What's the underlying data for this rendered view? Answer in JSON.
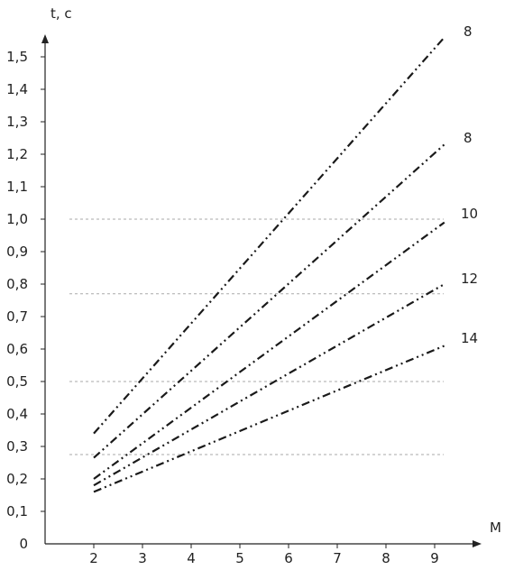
{
  "chart_data": {
    "type": "line",
    "xlabel": "M",
    "ylabel": "t, c",
    "xlim": [
      1,
      9.5
    ],
    "ylim": [
      0,
      1.6
    ],
    "x_ticks": [
      "2",
      "3",
      "4",
      "5",
      "6",
      "7",
      "8",
      "9"
    ],
    "y_ticks": [
      "0",
      "0,1",
      "0,2",
      "0,3",
      "0,4",
      "0,5",
      "0,6",
      "0,7",
      "0,8",
      "0,9",
      "1,0",
      "1,1",
      "1,2",
      "1,3",
      "1,4",
      "1,5"
    ],
    "reference_lines": [
      1.0,
      0.77,
      0.5,
      0.275
    ],
    "grid": false,
    "legend": "none",
    "line_color": "#1a1a1a",
    "reference_color": "#aaaaaa",
    "series": [
      {
        "label": "8",
        "points": [
          [
            2,
            0.34
          ],
          [
            9.2,
            1.56
          ]
        ]
      },
      {
        "label": "8",
        "points": [
          [
            2,
            0.265
          ],
          [
            9.2,
            1.23
          ]
        ]
      },
      {
        "label": "10",
        "points": [
          [
            2,
            0.2
          ],
          [
            9.2,
            0.99
          ]
        ]
      },
      {
        "label": "12",
        "points": [
          [
            2,
            0.18
          ],
          [
            9.2,
            0.8
          ]
        ]
      },
      {
        "label": "14",
        "points": [
          [
            2,
            0.16
          ],
          [
            9.2,
            0.61
          ]
        ]
      }
    ]
  }
}
